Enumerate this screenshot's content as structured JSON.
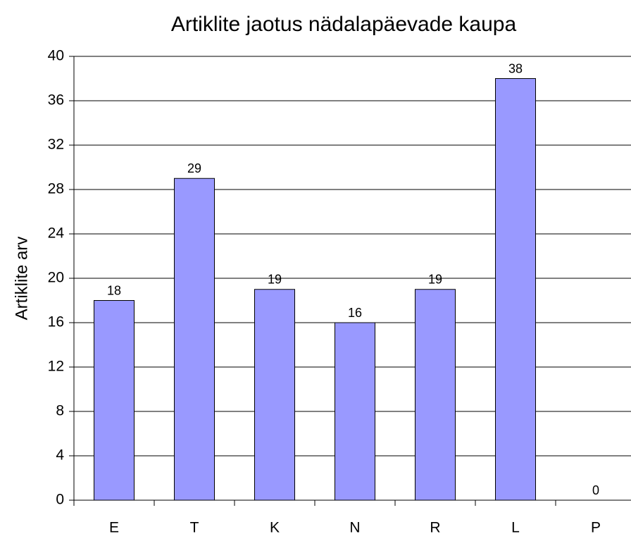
{
  "chart_data": {
    "type": "bar",
    "title": "Artiklite jaotus nädalapäevade kaupa",
    "y_label": "Artiklite arv",
    "categories": [
      "E",
      "T",
      "K",
      "N",
      "R",
      "L",
      "P"
    ],
    "values": [
      18,
      29,
      19,
      16,
      19,
      38,
      0
    ],
    "color": "#9999ff",
    "ylim": [
      0,
      40
    ],
    "yticks": [
      0,
      4,
      8,
      12,
      16,
      20,
      24,
      28,
      32,
      36,
      40
    ],
    "grid": true
  }
}
